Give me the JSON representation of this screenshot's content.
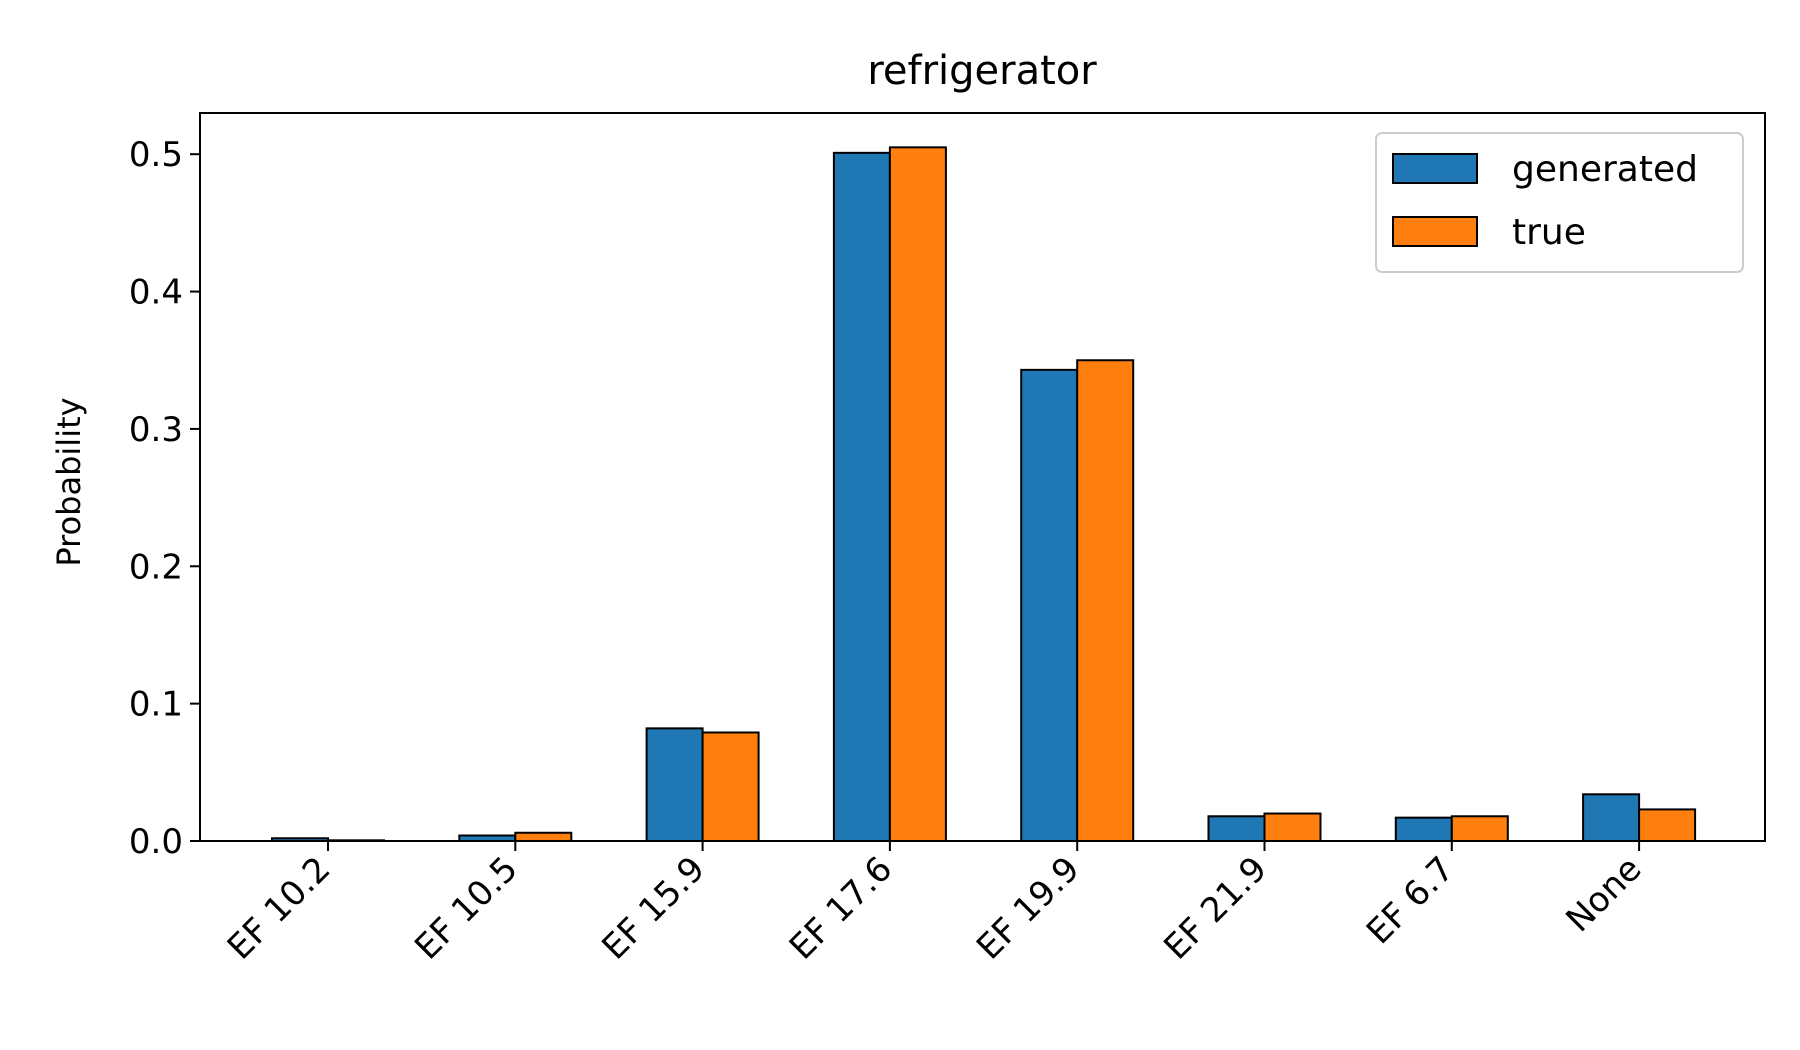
{
  "chart_data": {
    "type": "bar",
    "title": "refrigerator",
    "xlabel": "",
    "ylabel": "Probability",
    "categories": [
      "EF 10.2",
      "EF 10.5",
      "EF 15.9",
      "EF 17.6",
      "EF 19.9",
      "EF 21.9",
      "EF 6.7",
      "None"
    ],
    "series": [
      {
        "name": "generated",
        "color": "#1f77b4",
        "values": [
          0.002,
          0.004,
          0.082,
          0.501,
          0.343,
          0.018,
          0.017,
          0.034
        ]
      },
      {
        "name": "true",
        "color": "#ff7f0e",
        "values": [
          0.0005,
          0.006,
          0.079,
          0.505,
          0.35,
          0.02,
          0.018,
          0.023
        ]
      }
    ],
    "ylim": [
      0,
      0.53
    ],
    "yticks": [
      0.0,
      0.1,
      0.2,
      0.3,
      0.4,
      0.5
    ],
    "ytick_labels": [
      "0.0",
      "0.1",
      "0.2",
      "0.3",
      "0.4",
      "0.5"
    ],
    "grid": false,
    "legend_position": "top-right",
    "bar_edge_color": "#000000"
  }
}
